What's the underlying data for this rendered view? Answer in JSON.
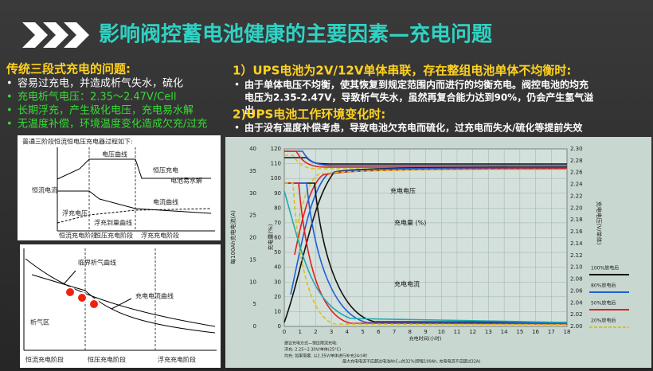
{
  "header": {
    "title": "影响阀控蓄电池健康的主要因素—充电问题"
  },
  "left": {
    "heading": "传统三段式充电的问题:",
    "bullets": [
      "容易过充电，并造成析气失水，硫化",
      "充电析气电压：2.35～2.47V/Cell",
      "长期浮充，产生极化电压，充电易水解",
      "无温度补偿，环境温度变化造成欠充/过充"
    ]
  },
  "right": {
    "heading1": "1）UPS电池为2V/12V单体串联，存在整组电池单体不均衡时:",
    "para1": [
      "由于单体电压不均衡，使其恢复到规定范围内而进行的均衡充电。阀控电池的均充",
      "电压为2.35-2.47V，导致析气失水，虽然再复合能力达到90%，仍会产生氢气溢",
      "出"
    ],
    "heading2": "2)UPS电池工作环境变化时:",
    "para2": "由于没有温度补偿考虑，导致电池欠充电而硫化，过充电而失水/硫化等提前失效"
  },
  "figure1": {
    "title": "普通三阶段恒流恒电压充电器过程如下:",
    "labels": [
      "电压曲线",
      "恒压充电",
      "电池易水解",
      "恒流电流",
      "电流曲线",
      "浮充电压",
      "浮充到量曲线"
    ],
    "stages": [
      "恒流充电阶段",
      "恒压充电阶段",
      "浮充充电阶段"
    ]
  },
  "figure2": {
    "labels": [
      "临界析气曲线",
      "充电电流曲线",
      "析气区"
    ],
    "stages": [
      "恒流充电阶段",
      "恒压充电阶段",
      "浮充充电阶段"
    ]
  },
  "charge_chart": {
    "y_label": "每100Ah充电电流(A)",
    "y2_label": "充电量(%)",
    "y3_label": "充电电压(V/单体)",
    "x_label": "充电时间(小时)",
    "yticks": [
      "0",
      "5",
      "10",
      "15",
      "20",
      "25",
      "30",
      "35",
      "40"
    ],
    "y2ticks": [
      "0",
      "10",
      "20",
      "30",
      "40",
      "50",
      "60",
      "70",
      "80",
      "90",
      "100",
      "110",
      "120"
    ],
    "y3ticks": [
      "2.00",
      "2.02",
      "2.04",
      "2.06",
      "2.08",
      "2.10",
      "2.12",
      "2.14",
      "2.16",
      "2.18",
      "2.20",
      "2.22",
      "2.24",
      "2.26",
      "2.28",
      "2.30"
    ],
    "xticks": [
      "0",
      "1",
      "2",
      "3",
      "4",
      "5",
      "6",
      "7",
      "8",
      "9",
      "10",
      "11",
      "12",
      "13",
      "14",
      "15",
      "16",
      "17",
      "18"
    ],
    "annotations": [
      "充电电压",
      "充电量 (%)",
      "充电电流"
    ],
    "legend": [
      "100%放电后",
      "80%放电后",
      "50%放电后",
      "20%放电后"
    ],
    "notes": [
      "建议充电方式—恒压限流充电:",
      "浮充: 2.25~2.30V/单体(25°C)",
      "均充: 如果需要, 以2.35V/单体进行补充24小时",
      "最大充电电流不应超过电池AhC₁₀的32%(即每100Ah, 充电电流不应超过32A)"
    ]
  }
}
